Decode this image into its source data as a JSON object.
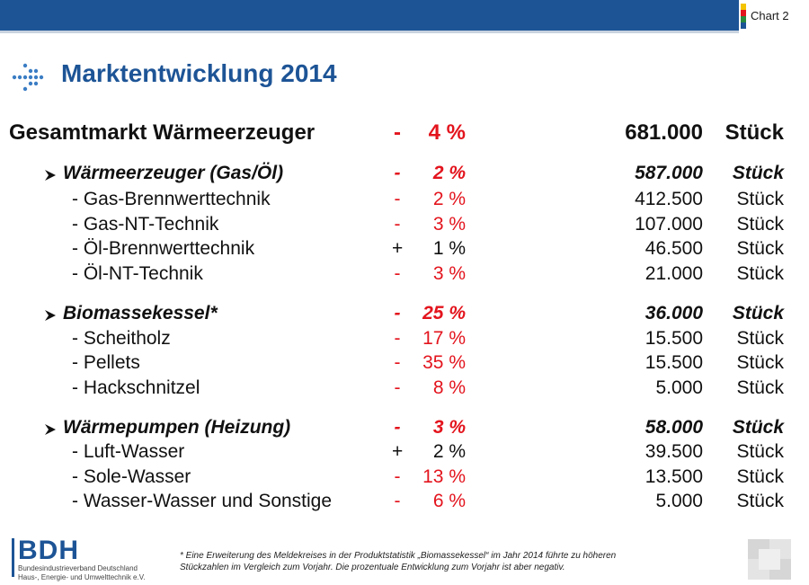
{
  "header": {
    "chart_label": "Chart 2",
    "strip_colors": [
      "#f4c400",
      "#e3141d",
      "#2b8a3e",
      "#1d5496"
    ]
  },
  "title": "Marktentwicklung 2014",
  "colors": {
    "accent": "#1d5496",
    "negative": "#e3141d"
  },
  "total": {
    "label": "Gesamtmarkt Wärmeerzeuger",
    "sign": "-",
    "pct": "4 %",
    "value": "681.000",
    "unit": "Stück"
  },
  "groups": [
    {
      "label": "Wärmeerzeuger (Gas/Öl)",
      "sign": "-",
      "pct": "2 %",
      "value": "587.000",
      "unit": "Stück",
      "items": [
        {
          "label": "- Gas-Brennwerttechnik",
          "sign": "-",
          "pct": "2 %",
          "value": "412.500",
          "unit": "Stück"
        },
        {
          "label": "- Gas-NT-Technik",
          "sign": "-",
          "pct": "3 %",
          "value": "107.000",
          "unit": "Stück"
        },
        {
          "label": "- Öl-Brennwerttechnik",
          "sign": "+",
          "pct": "1 %",
          "value": "46.500",
          "unit": "Stück"
        },
        {
          "label": "- Öl-NT-Technik",
          "sign": "-",
          "pct": "3 %",
          "value": "21.000",
          "unit": "Stück"
        }
      ]
    },
    {
      "label": "Biomassekessel*",
      "sign": "-",
      "pct": "25 %",
      "value": "36.000",
      "unit": "Stück",
      "items": [
        {
          "label": "- Scheitholz",
          "sign": "-",
          "pct": "17 %",
          "value": "15.500",
          "unit": "Stück"
        },
        {
          "label": "- Pellets",
          "sign": "-",
          "pct": "35 %",
          "value": "15.500",
          "unit": "Stück"
        },
        {
          "label": "- Hackschnitzel",
          "sign": "-",
          "pct": "8 %",
          "value": "5.000",
          "unit": "Stück"
        }
      ]
    },
    {
      "label": "Wärmepumpen (Heizung)",
      "sign": "-",
      "pct": "3 %",
      "value": "58.000",
      "unit": "Stück",
      "items": [
        {
          "label": "- Luft-Wasser",
          "sign": "+",
          "pct": "2 %",
          "value": "39.500",
          "unit": "Stück"
        },
        {
          "label": "- Sole-Wasser",
          "sign": "-",
          "pct": "13 %",
          "value": "13.500",
          "unit": "Stück"
        },
        {
          "label": "- Wasser-Wasser und Sonstige",
          "sign": "-",
          "pct": "6 %",
          "value": "5.000",
          "unit": "Stück"
        }
      ]
    }
  ],
  "footer": {
    "logo": "BDH",
    "logo_line1": "Bundesindustrieverband Deutschland",
    "logo_line2": "Haus-, Energie- und Umwelttechnik e.V.",
    "footnote_line1": "* Eine Erweiterung des Meldekreises in der Produktstatistik „Biomassekessel“ im Jahr 2014 führte zu höheren",
    "footnote_line2": "Stückzahlen im Vergleich zum Vorjahr. Die prozentuale Entwicklung zum Vorjahr ist aber negativ."
  }
}
